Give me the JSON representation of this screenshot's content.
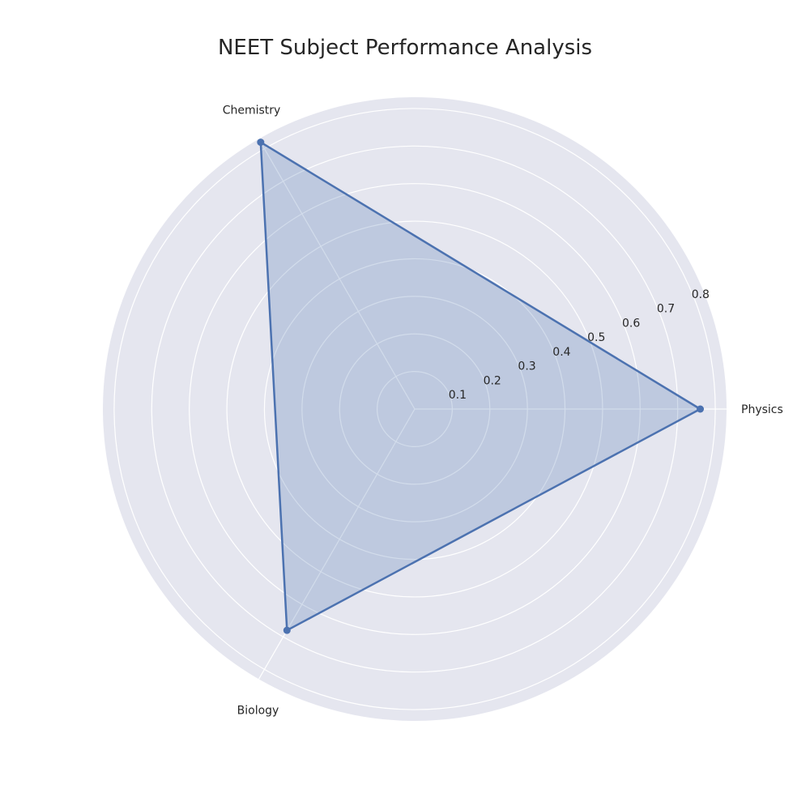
{
  "chart_data": {
    "type": "radar",
    "title": "NEET Subject Performance Analysis",
    "categories": [
      "Physics",
      "Chemistry",
      "Biology"
    ],
    "series": [
      {
        "values": [
          0.76,
          0.82,
          0.68
        ]
      }
    ],
    "r_ticks": [
      0.1,
      0.2,
      0.3,
      0.4,
      0.5,
      0.6,
      0.7,
      0.8
    ],
    "r_tick_labels": [
      "0.1",
      "0.2",
      "0.3",
      "0.4",
      "0.5",
      "0.6",
      "0.7",
      "0.8"
    ],
    "rlim": [
      0,
      0.83
    ],
    "grid": true,
    "legend": "none",
    "colors": {
      "background": "#e5e6ef",
      "grid": "#ffffff",
      "line": "#4c72b0",
      "fill": "#4c72b0"
    }
  }
}
